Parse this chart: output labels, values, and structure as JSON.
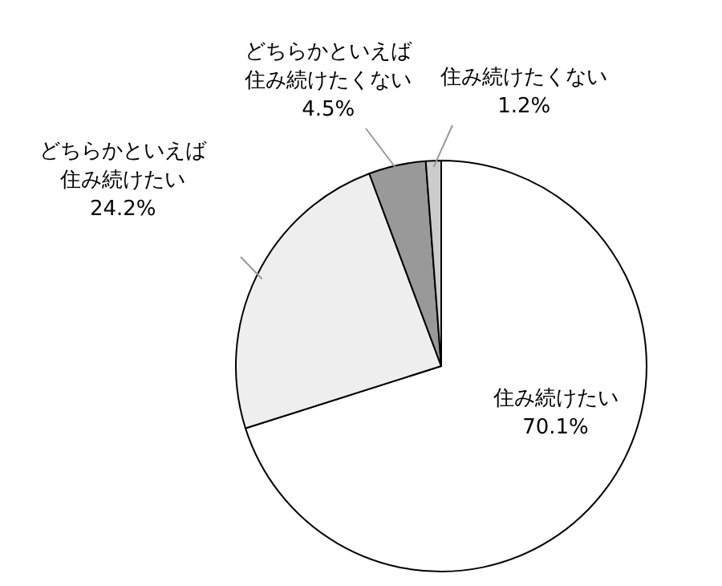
{
  "chart_data": {
    "type": "pie",
    "categories": [
      "住み続けたい",
      "どちらかといえば住み続けたい",
      "どちらかといえば住み続けたくない",
      "住み続けたくない"
    ],
    "values": [
      70.1,
      24.2,
      4.5,
      1.2
    ],
    "colors": [
      "#ffffff",
      "#eeeeee",
      "#999999",
      "#cccccc"
    ],
    "value_labels": [
      "70.1%",
      "24.2%",
      "4.5%",
      "1.2%"
    ]
  }
}
